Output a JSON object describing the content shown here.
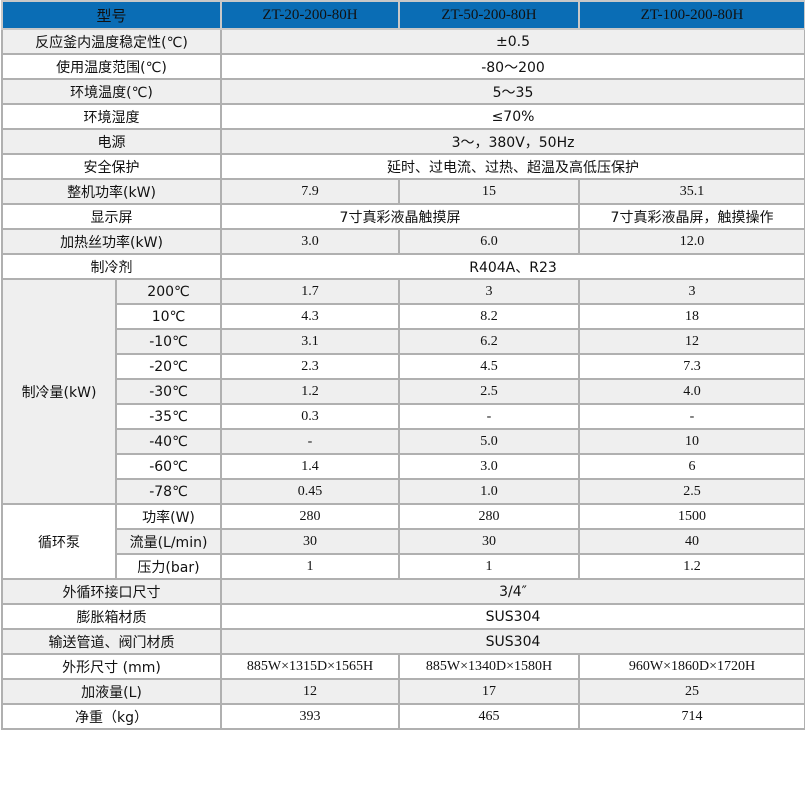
{
  "header": {
    "label": "型号",
    "models": [
      "ZT-20-200-80H",
      "ZT-50-200-80H",
      "ZT-100-200-80H"
    ]
  },
  "rows": [
    {
      "label": "反应釜内温度稳定性(℃)",
      "span": "±0.5"
    },
    {
      "label": "使用温度范围(℃)",
      "span": "-80～200"
    },
    {
      "label": "环境温度(℃)",
      "span": "5～35"
    },
    {
      "label": "环境湿度",
      "span": "≤70%"
    },
    {
      "label": "电源",
      "span": "3～，380V，50Hz"
    },
    {
      "label": "安全保护",
      "span": "延时、过电流、过热、超温及高低压保护"
    },
    {
      "label": "整机功率(kW)",
      "values": [
        "7.9",
        "15",
        "35.1"
      ]
    },
    {
      "label": "显示屏",
      "span2": "7寸真彩液晶触摸屏",
      "last": "7寸真彩液晶屏，触摸操作"
    },
    {
      "label": "加热丝功率(kW)",
      "values": [
        "3.0",
        "6.0",
        "12.0"
      ]
    },
    {
      "label": "制冷剂",
      "span": "R404A、R23"
    }
  ],
  "cooling": {
    "label": "制冷量(kW)",
    "rows": [
      {
        "temp": "200℃",
        "values": [
          "1.7",
          "3",
          "3"
        ]
      },
      {
        "temp": "10℃",
        "values": [
          "4.3",
          "8.2",
          "18"
        ]
      },
      {
        "temp": "-10℃",
        "values": [
          "3.1",
          "6.2",
          "12"
        ]
      },
      {
        "temp": "-20℃",
        "values": [
          "2.3",
          "4.5",
          "7.3"
        ]
      },
      {
        "temp": "-30℃",
        "values": [
          "1.2",
          "2.5",
          "4.0"
        ]
      },
      {
        "temp": "-35℃",
        "values": [
          "0.3",
          "-",
          "-"
        ]
      },
      {
        "temp": "-40℃",
        "values": [
          "-",
          "5.0",
          "10"
        ]
      },
      {
        "temp": "-60℃",
        "values": [
          "1.4",
          "3.0",
          "6"
        ]
      },
      {
        "temp": "-78℃",
        "values": [
          "0.45",
          "1.0",
          "2.5"
        ]
      }
    ]
  },
  "pump": {
    "label": "循环泵",
    "rows": [
      {
        "temp": "功率(W)",
        "values": [
          "280",
          "280",
          "1500"
        ]
      },
      {
        "temp": "流量(L/min)",
        "values": [
          "30",
          "30",
          "40"
        ]
      },
      {
        "temp": "压力(bar)",
        "values": [
          "1",
          "1",
          "1.2"
        ]
      }
    ]
  },
  "rows2": [
    {
      "label": "外循环接口尺寸",
      "span": "3/4″"
    },
    {
      "label": "膨胀箱材质",
      "span": "SUS304"
    },
    {
      "label": "输送管道、阀门材质",
      "span": "SUS304"
    },
    {
      "label": "外形尺寸 (mm)",
      "values": [
        "885W×1315D×1565H",
        "885W×1340D×1580H",
        "960W×1860D×1720H"
      ]
    },
    {
      "label": "加液量(L)",
      "values": [
        "12",
        "17",
        "25"
      ]
    },
    {
      "label": "净重（kg）",
      "values": [
        "393",
        "465",
        "714"
      ]
    }
  ]
}
